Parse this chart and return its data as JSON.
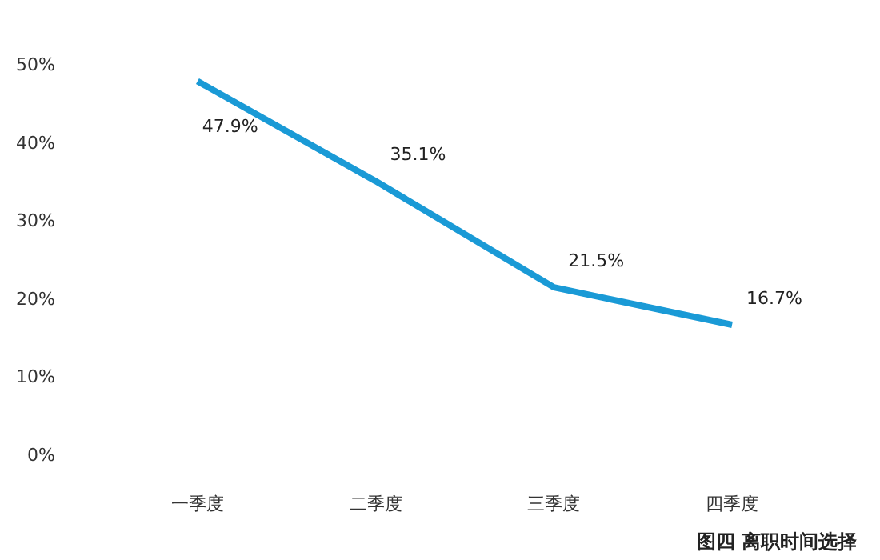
{
  "chart_data": {
    "type": "line",
    "categories": [
      "一季度",
      "二季度",
      "三季度",
      "四季度"
    ],
    "series": [
      {
        "color": "#1a9ad6",
        "values": [
          47.9,
          35.1,
          21.5,
          16.7
        ],
        "value_labels": [
          "47.9%",
          "35.1%",
          "21.5%",
          "16.7%"
        ]
      }
    ],
    "ylim": [
      0,
      50
    ],
    "yticks": [
      {
        "value": 0,
        "label": "0%"
      },
      {
        "value": 10,
        "label": "10%"
      },
      {
        "value": 20,
        "label": "20%"
      },
      {
        "value": 30,
        "label": "30%"
      },
      {
        "value": 40,
        "label": "40%"
      },
      {
        "value": 50,
        "label": "50%"
      }
    ],
    "grid": false,
    "marker": "none",
    "line_style": "solid",
    "annotations": [
      "图四 离职时间选择"
    ]
  }
}
